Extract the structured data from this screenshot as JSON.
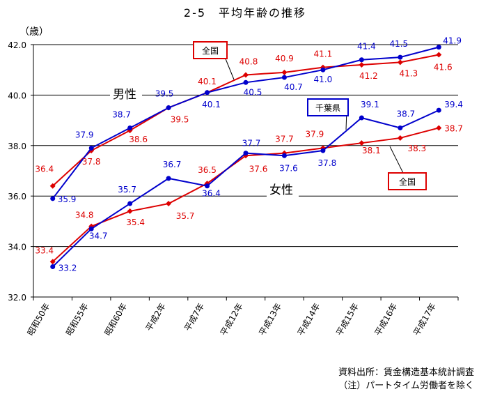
{
  "chart_data": {
    "type": "line",
    "title": "2-5　平均年齢の推移",
    "ylabel": "（歳）",
    "ylim": [
      32.0,
      42.0
    ],
    "yticks": [
      "32.0",
      "34.0",
      "36.0",
      "38.0",
      "40.0",
      "42.0"
    ],
    "categories": [
      "昭和50年",
      "昭和55年",
      "昭和60年",
      "平成2年",
      "平成7年",
      "平成12年",
      "平成13年",
      "平成14年",
      "平成15年",
      "平成16年",
      "平成17年"
    ],
    "series": [
      {
        "name": "男性・全国",
        "group": "男性",
        "color": "#dd0000",
        "marker": "diamond",
        "values": [
          36.4,
          37.8,
          38.6,
          39.5,
          40.1,
          40.8,
          40.9,
          41.1,
          41.2,
          41.3,
          41.6
        ],
        "labels": [
          "36.4",
          "37.8",
          "38.6",
          "39.5",
          "40.1",
          "40.8",
          "40.9",
          "41.1",
          "41.2",
          "41.3",
          "41.6"
        ]
      },
      {
        "name": "男性・千葉県",
        "group": "男性",
        "color": "#0000cc",
        "marker": "circle",
        "values": [
          35.9,
          37.9,
          38.7,
          39.5,
          40.1,
          40.5,
          40.7,
          41.0,
          41.4,
          41.5,
          41.9
        ],
        "labels": [
          "35.9",
          "37.9",
          "38.7",
          "39.5",
          "40.1",
          "40.5",
          "40.7",
          "41.0",
          "41.4",
          "41.5",
          "41.9"
        ]
      },
      {
        "name": "女性・全国",
        "group": "女性",
        "color": "#dd0000",
        "marker": "diamond",
        "values": [
          33.4,
          34.8,
          35.4,
          35.7,
          36.5,
          37.6,
          37.7,
          37.9,
          38.1,
          38.3,
          38.7
        ],
        "labels": [
          "33.4",
          "34.8",
          "35.4",
          "35.7",
          "36.5",
          "37.6",
          "37.7",
          "37.9",
          "38.1",
          "38.3",
          "38.7"
        ]
      },
      {
        "name": "女性・千葉県",
        "group": "女性",
        "color": "#0000cc",
        "marker": "circle",
        "values": [
          33.2,
          34.7,
          35.7,
          36.7,
          36.4,
          37.7,
          37.6,
          37.8,
          39.1,
          38.7,
          39.4
        ],
        "labels": [
          "33.2",
          "34.7",
          "35.7",
          "36.7",
          "36.4",
          "37.7",
          "37.6",
          "37.8",
          "39.1",
          "38.7",
          "39.4"
        ]
      }
    ],
    "annotations": {
      "male": "男性",
      "female": "女性",
      "national_top": "全国",
      "chiba": "千葉県",
      "national_bottom": "全国"
    }
  },
  "footnotes": {
    "source": "資料出所：賃金構造基本統計調査",
    "note": "（注）パートタイム労働者を除く"
  }
}
